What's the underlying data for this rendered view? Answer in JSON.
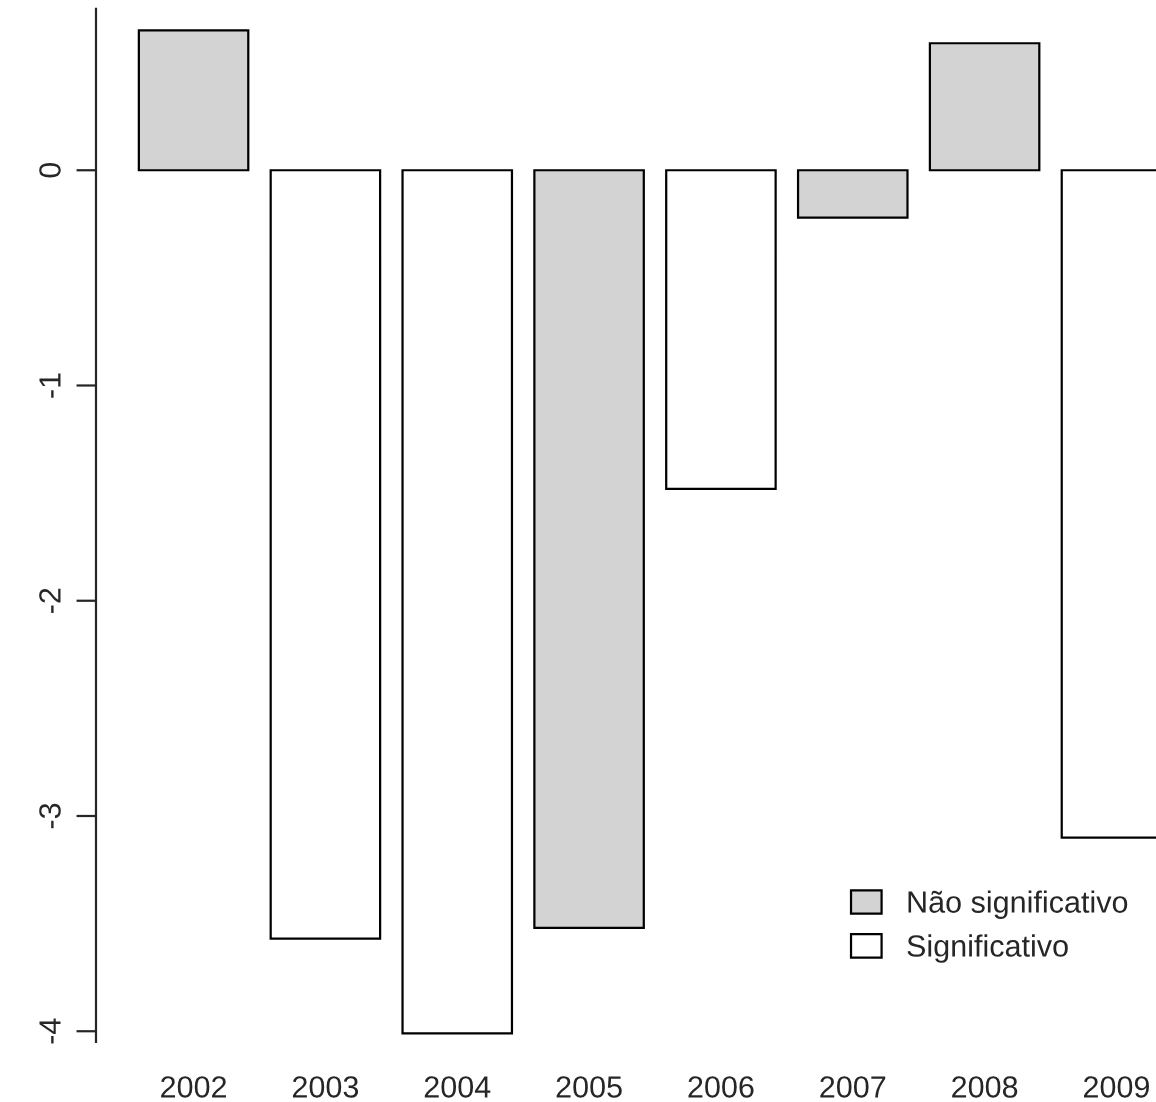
{
  "chart_data": {
    "type": "bar",
    "categories": [
      "2002",
      "2003",
      "2004",
      "2005",
      "2006",
      "2007",
      "2008",
      "2009"
    ],
    "series": [
      {
        "name": "Não significativo",
        "color": "#d3d3d3",
        "values": [
          0.65,
          null,
          null,
          -3.52,
          null,
          -0.22,
          0.59,
          null
        ]
      },
      {
        "name": "Significativo",
        "color": "#ffffff",
        "values": [
          null,
          -3.57,
          -4.01,
          null,
          -1.48,
          null,
          null,
          -3.1
        ]
      }
    ],
    "ylim": [
      -4.05,
      0.75
    ],
    "yticks": [
      0,
      -1,
      -2,
      -3,
      -4
    ],
    "grid": false,
    "legend": "bottom right"
  }
}
